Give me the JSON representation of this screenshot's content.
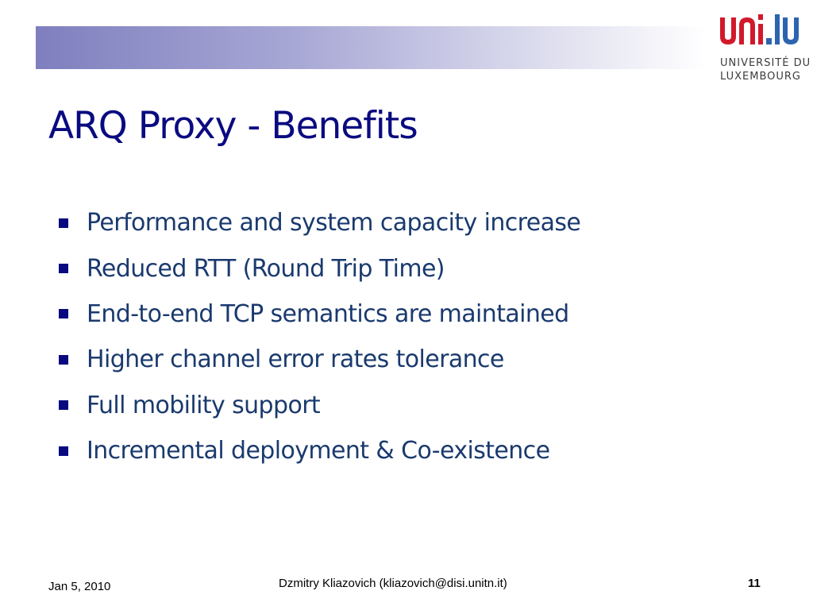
{
  "slide": {
    "title": "ARQ Proxy - Benefits",
    "bullets": [
      "Performance and system capacity increase",
      "Reduced RTT (Round Trip Time)",
      "End-to-end TCP semantics are maintained",
      "Higher channel error rates tolerance",
      "Full mobility support",
      "Incremental deployment & Co-existence"
    ]
  },
  "logo": {
    "wordmark": "uni.lu",
    "line1": "UNIVERSITÉ DU",
    "line2": "LUXEMBOURG",
    "colors": {
      "red": "#d2192b",
      "blue": "#2c64b0"
    }
  },
  "footer": {
    "date": "Jan 5, 2010",
    "author": "Dzmitry Kliazovich (kliazovich@disi.unitn.it)",
    "page_number": "11"
  },
  "colors": {
    "title": "#0a0a80",
    "bullet_text": "#1a3a6e",
    "bullet_marker": "#0a0a80"
  },
  "icons": {
    "bullet": "filled-square"
  }
}
